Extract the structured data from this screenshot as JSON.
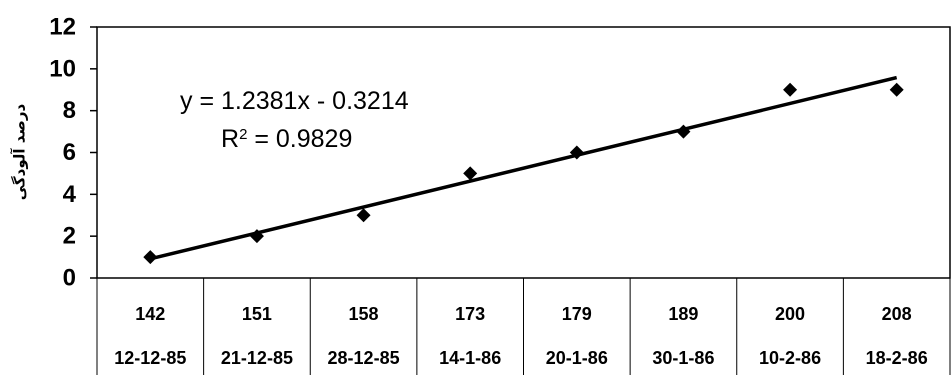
{
  "chart_data": {
    "type": "scatter",
    "ylabel": "درصد آلودگی",
    "ylim": [
      0,
      12
    ],
    "yticks": [
      0,
      2,
      4,
      6,
      8,
      10,
      12
    ],
    "categories": [
      "142",
      "151",
      "158",
      "173",
      "179",
      "189",
      "200",
      "208"
    ],
    "dates": [
      "12-12-85",
      "21-12-85",
      "28-12-85",
      "14-1-86",
      "20-1-86",
      "30-1-86",
      "10-2-86",
      "18-2-86"
    ],
    "x": [
      1,
      2,
      3,
      4,
      5,
      6,
      7,
      8
    ],
    "values": [
      1,
      2,
      3,
      5,
      6,
      7,
      9,
      9
    ],
    "trendline": {
      "slope": 1.2381,
      "intercept": -0.3214,
      "equation": "y = 1.2381x - 0.3214",
      "r2_prefix": "R",
      "r2_exp": "2",
      "r2_value": " = 0.9829"
    },
    "marker_color": "#000000",
    "line_color": "#000000",
    "grid": false
  }
}
